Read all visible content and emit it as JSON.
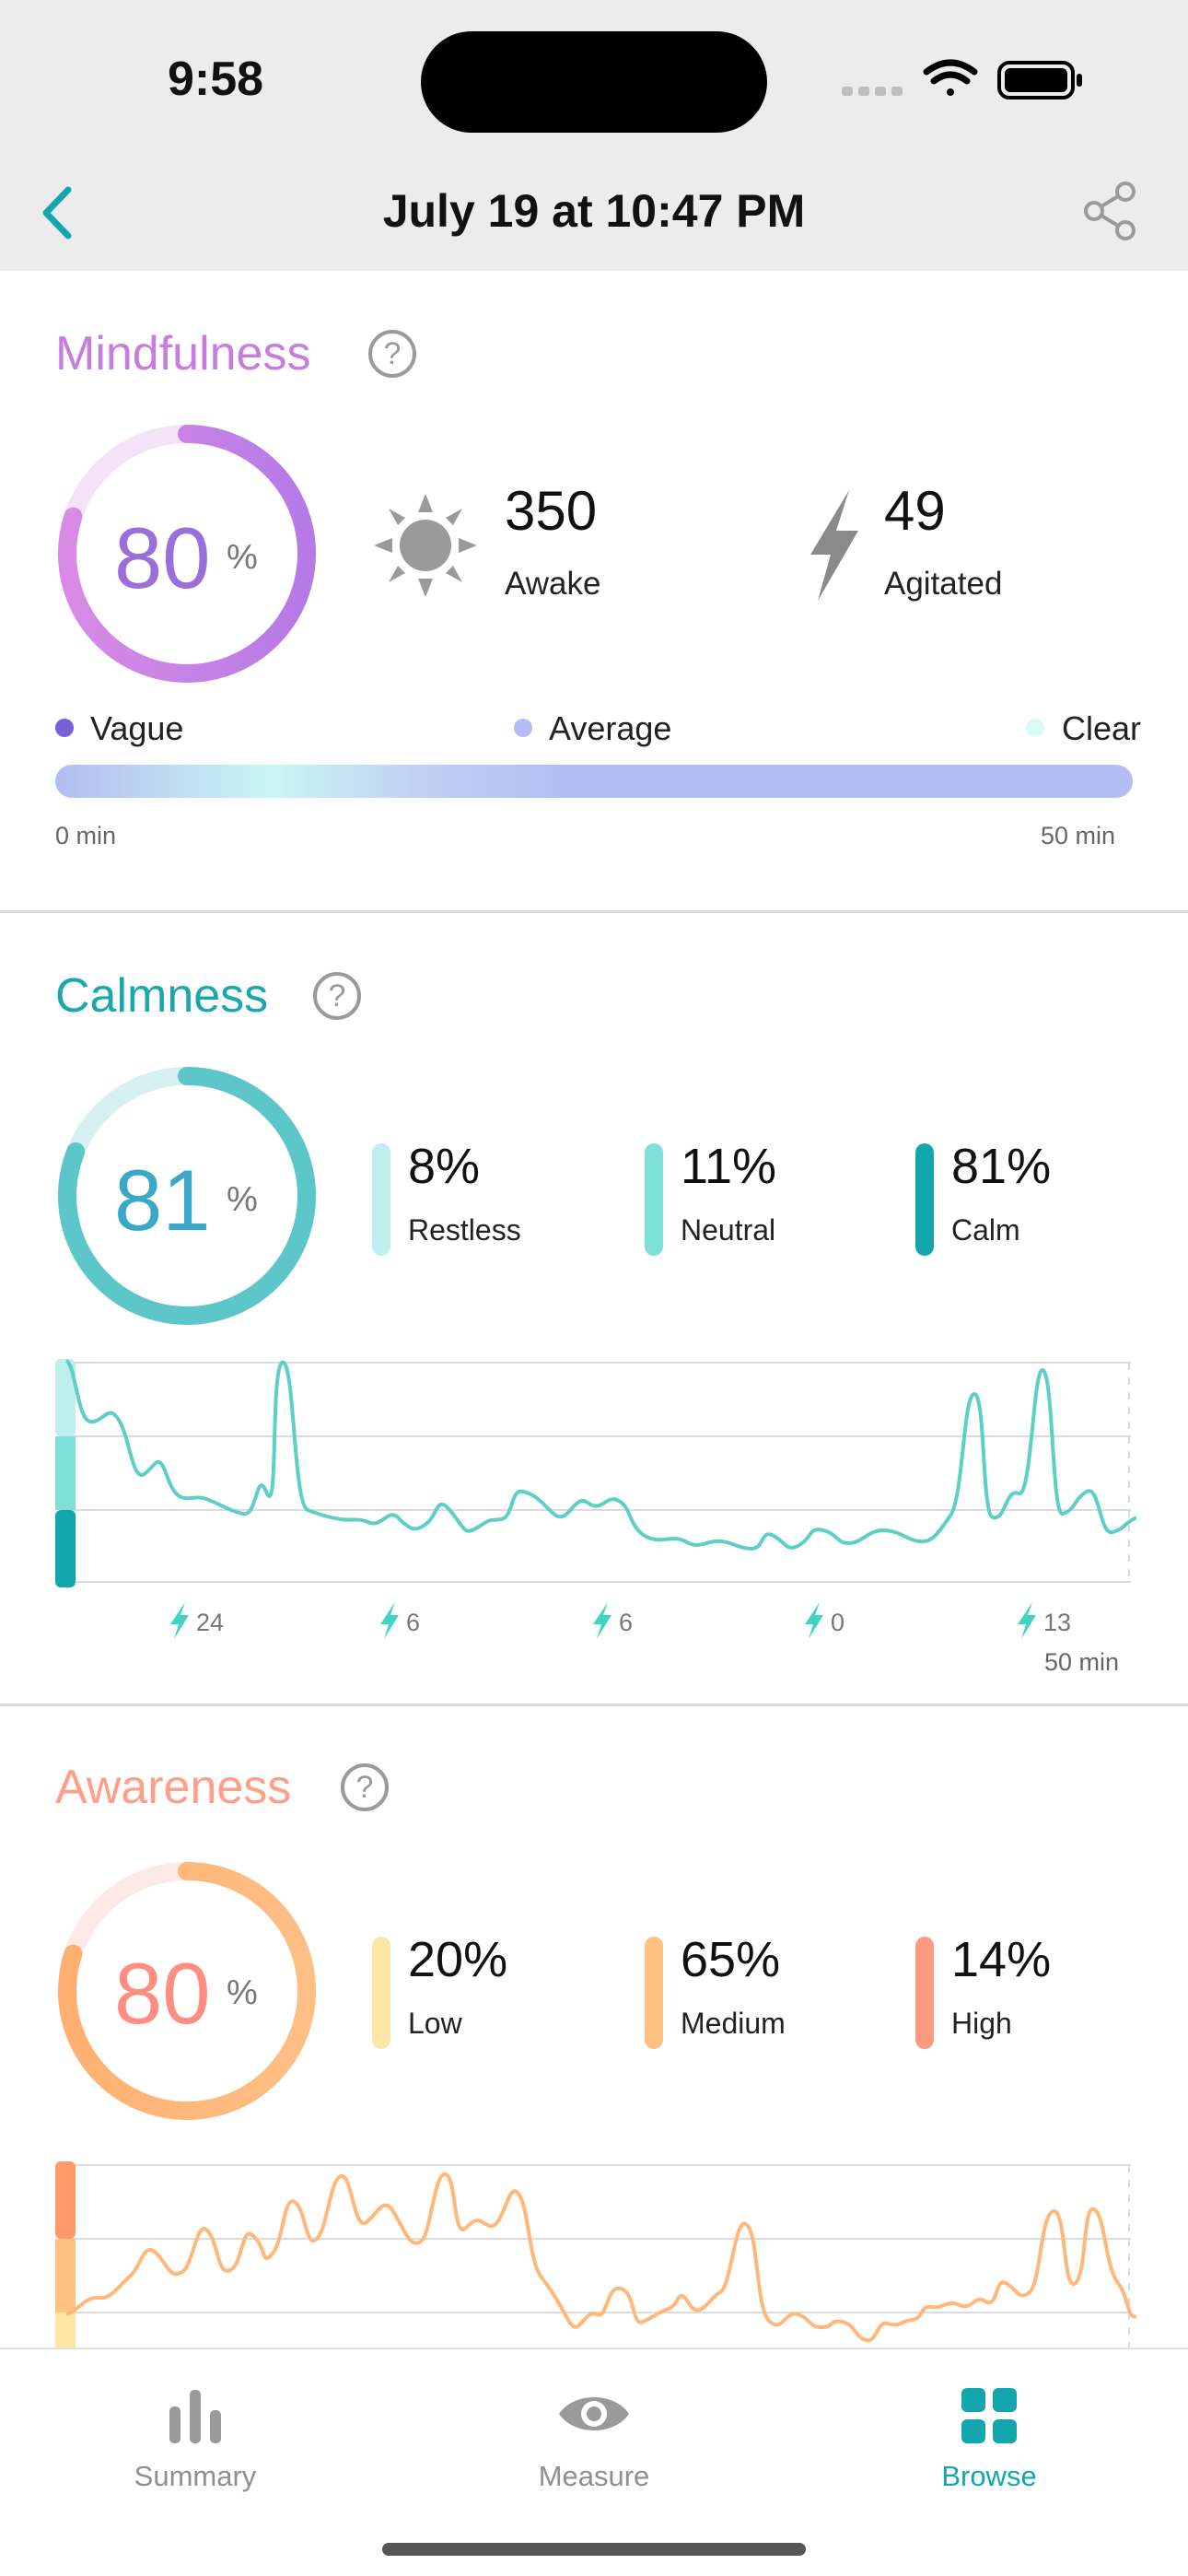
{
  "status": {
    "time": "9:58"
  },
  "nav": {
    "title": "July 19 at 10:47 PM"
  },
  "mindfulness": {
    "title": "Mindfulness",
    "score": "80",
    "unit": "%",
    "awake_value": "350",
    "awake_label": "Awake",
    "agitated_value": "49",
    "agitated_label": "Agitated",
    "legend": [
      "Vague",
      "Average",
      "Clear"
    ],
    "range_start": "0 min",
    "range_end": "50 min",
    "color": "#c77de0"
  },
  "calmness": {
    "title": "Calmness",
    "score": "81",
    "unit": "%",
    "stats": [
      {
        "value": "8%",
        "label": "Restless",
        "color": "#bfeeee"
      },
      {
        "value": "11%",
        "label": "Neutral",
        "color": "#7fe0da"
      },
      {
        "value": "81%",
        "label": "Calm",
        "color": "#13a7ad"
      }
    ],
    "markers": [
      "24",
      "6",
      "6",
      "0",
      "13"
    ],
    "range_end": "50 min",
    "color": "#1aa7ad"
  },
  "awareness": {
    "title": "Awareness",
    "score": "80",
    "unit": "%",
    "stats": [
      {
        "value": "20%",
        "label": "Low",
        "color": "#fde6a6"
      },
      {
        "value": "65%",
        "label": "Medium",
        "color": "#ffc283"
      },
      {
        "value": "14%",
        "label": "High",
        "color": "#ff9a82"
      }
    ],
    "color": "#ff9a82"
  },
  "tabs": [
    {
      "label": "Summary",
      "icon": "bar-chart-icon",
      "active": false
    },
    {
      "label": "Measure",
      "icon": "eye-icon",
      "active": false
    },
    {
      "label": "Browse",
      "icon": "grid-icon",
      "active": true
    }
  ],
  "accent": "#13a7ad"
}
